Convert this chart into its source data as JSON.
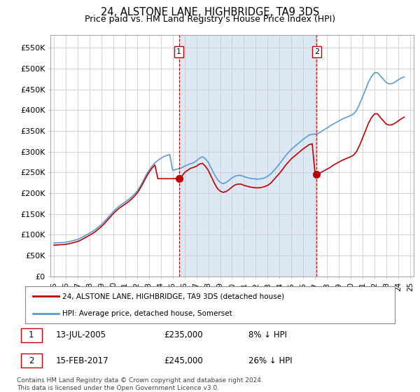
{
  "title": "24, ALSTONE LANE, HIGHBRIDGE, TA9 3DS",
  "subtitle": "Price paid vs. HM Land Registry's House Price Index (HPI)",
  "ylabel_ticks": [
    "£0",
    "£50K",
    "£100K",
    "£150K",
    "£200K",
    "£250K",
    "£300K",
    "£350K",
    "£400K",
    "£450K",
    "£500K",
    "£550K"
  ],
  "ytick_values": [
    0,
    50000,
    100000,
    150000,
    200000,
    250000,
    300000,
    350000,
    400000,
    450000,
    500000,
    550000
  ],
  "ylim": [
    0,
    580000
  ],
  "sale1_date": 2005.53,
  "sale1_price": 235000,
  "sale1_label": "1",
  "sale2_date": 2017.12,
  "sale2_price": 245000,
  "sale2_label": "2",
  "legend_line1": "24, ALSTONE LANE, HIGHBRIDGE, TA9 3DS (detached house)",
  "legend_line2": "HPI: Average price, detached house, Somerset",
  "note1_label": "1",
  "note1_date": "13-JUL-2005",
  "note1_price": "£235,000",
  "note1_hpi": "8% ↓ HPI",
  "note2_label": "2",
  "note2_date": "15-FEB-2017",
  "note2_price": "£245,000",
  "note2_hpi": "26% ↓ HPI",
  "footer": "Contains HM Land Registry data © Crown copyright and database right 2024.\nThis data is licensed under the Open Government Licence v3.0.",
  "hpi_color": "#5b9bd5",
  "hpi_fill_color": "#dce9f5",
  "sale_color": "#c00000",
  "vline_color": "#c00000",
  "background_color": "#ffffff",
  "grid_color": "#cccccc",
  "hpi_data_x": [
    1995.0,
    1995.25,
    1995.5,
    1995.75,
    1996.0,
    1996.25,
    1996.5,
    1996.75,
    1997.0,
    1997.25,
    1997.5,
    1997.75,
    1998.0,
    1998.25,
    1998.5,
    1998.75,
    1999.0,
    1999.25,
    1999.5,
    1999.75,
    2000.0,
    2000.25,
    2000.5,
    2000.75,
    2001.0,
    2001.25,
    2001.5,
    2001.75,
    2002.0,
    2002.25,
    2002.5,
    2002.75,
    2003.0,
    2003.25,
    2003.5,
    2003.75,
    2004.0,
    2004.25,
    2004.5,
    2004.75,
    2005.0,
    2005.25,
    2005.5,
    2005.75,
    2006.0,
    2006.25,
    2006.5,
    2006.75,
    2007.0,
    2007.25,
    2007.5,
    2007.75,
    2008.0,
    2008.25,
    2008.5,
    2008.75,
    2009.0,
    2009.25,
    2009.5,
    2009.75,
    2010.0,
    2010.25,
    2010.5,
    2010.75,
    2011.0,
    2011.25,
    2011.5,
    2011.75,
    2012.0,
    2012.25,
    2012.5,
    2012.75,
    2013.0,
    2013.25,
    2013.5,
    2013.75,
    2014.0,
    2014.25,
    2014.5,
    2014.75,
    2015.0,
    2015.25,
    2015.5,
    2015.75,
    2016.0,
    2016.25,
    2016.5,
    2016.75,
    2017.0,
    2017.25,
    2017.5,
    2017.75,
    2018.0,
    2018.25,
    2018.5,
    2018.75,
    2019.0,
    2019.25,
    2019.5,
    2019.75,
    2020.0,
    2020.25,
    2020.5,
    2020.75,
    2021.0,
    2021.25,
    2021.5,
    2021.75,
    2022.0,
    2022.25,
    2022.5,
    2022.75,
    2023.0,
    2023.25,
    2023.5,
    2023.75,
    2024.0,
    2024.25,
    2024.5
  ],
  "hpi_data_y": [
    80000,
    80500,
    81000,
    81500,
    82000,
    83500,
    85000,
    87000,
    89000,
    92000,
    96000,
    100000,
    104000,
    108000,
    113000,
    119000,
    125000,
    132000,
    140000,
    148000,
    156000,
    163000,
    169000,
    174000,
    179000,
    184000,
    190000,
    197000,
    205000,
    216000,
    229000,
    243000,
    255000,
    265000,
    273000,
    279000,
    284000,
    288000,
    291000,
    293000,
    255000,
    257000,
    259000,
    261000,
    265000,
    268000,
    271000,
    273000,
    278000,
    284000,
    288000,
    283000,
    274000,
    260000,
    246000,
    234000,
    226000,
    223000,
    226000,
    231000,
    237000,
    241000,
    243000,
    243000,
    240000,
    238000,
    236000,
    235000,
    234000,
    234000,
    235000,
    237000,
    241000,
    246000,
    254000,
    262000,
    271000,
    280000,
    290000,
    298000,
    306000,
    312000,
    318000,
    324000,
    330000,
    335000,
    340000,
    342000,
    342000,
    344000,
    348000,
    353000,
    357000,
    362000,
    366000,
    370000,
    374000,
    378000,
    381000,
    384000,
    387000,
    391000,
    400000,
    415000,
    432000,
    450000,
    468000,
    481000,
    490000,
    490000,
    482000,
    474000,
    466000,
    463000,
    464000,
    468000,
    473000,
    477000,
    480000
  ],
  "sale_data_x": [
    1995.0,
    1995.25,
    1995.5,
    1995.75,
    1996.0,
    1996.25,
    1996.5,
    1996.75,
    1997.0,
    1997.25,
    1997.5,
    1997.75,
    1998.0,
    1998.25,
    1998.5,
    1998.75,
    1999.0,
    1999.25,
    1999.5,
    1999.75,
    2000.0,
    2000.25,
    2000.5,
    2000.75,
    2001.0,
    2001.25,
    2001.5,
    2001.75,
    2002.0,
    2002.25,
    2002.5,
    2002.75,
    2003.0,
    2003.25,
    2003.5,
    2003.75,
    2004.0,
    2004.25,
    2004.5,
    2004.75,
    2005.0,
    2005.25,
    2005.5,
    2005.75,
    2006.0,
    2006.25,
    2006.5,
    2006.75,
    2007.0,
    2007.25,
    2007.5,
    2007.75,
    2008.0,
    2008.25,
    2008.5,
    2008.75,
    2009.0,
    2009.25,
    2009.5,
    2009.75,
    2010.0,
    2010.25,
    2010.5,
    2010.75,
    2011.0,
    2011.25,
    2011.5,
    2011.75,
    2012.0,
    2012.25,
    2012.5,
    2012.75,
    2013.0,
    2013.25,
    2013.5,
    2013.75,
    2014.0,
    2014.25,
    2014.5,
    2014.75,
    2015.0,
    2015.25,
    2015.5,
    2015.75,
    2016.0,
    2016.25,
    2016.5,
    2016.75,
    2017.0,
    2017.25,
    2017.5,
    2017.75,
    2018.0,
    2018.25,
    2018.5,
    2018.75,
    2019.0,
    2019.25,
    2019.5,
    2019.75,
    2020.0,
    2020.25,
    2020.5,
    2020.75,
    2021.0,
    2021.25,
    2021.5,
    2021.75,
    2022.0,
    2022.25,
    2022.5,
    2022.75,
    2023.0,
    2023.25,
    2023.5,
    2023.75,
    2024.0,
    2024.25,
    2024.5
  ],
  "sale_data_y": [
    75000,
    75500,
    76000,
    76500,
    77000,
    78500,
    80000,
    82000,
    84000,
    87000,
    91000,
    95000,
    99000,
    103000,
    108000,
    114000,
    120000,
    127000,
    135000,
    143000,
    151000,
    158000,
    164000,
    169000,
    174000,
    179000,
    185000,
    192000,
    200000,
    211000,
    224000,
    238000,
    250000,
    260000,
    268000,
    235000,
    235000,
    235000,
    235000,
    235000,
    235000,
    235000,
    235000,
    240000,
    250000,
    255000,
    260000,
    262000,
    265000,
    270000,
    272000,
    265000,
    255000,
    240000,
    225000,
    212000,
    205000,
    202000,
    204000,
    209000,
    215000,
    220000,
    222000,
    222000,
    219000,
    217000,
    215000,
    214000,
    213000,
    213000,
    214000,
    216000,
    219000,
    224000,
    232000,
    240000,
    248000,
    257000,
    267000,
    275000,
    283000,
    289000,
    295000,
    301000,
    307000,
    312000,
    317000,
    319000,
    245000,
    247000,
    250000,
    254000,
    258000,
    262000,
    267000,
    271000,
    275000,
    279000,
    282000,
    285000,
    288000,
    292000,
    301000,
    316000,
    333000,
    351000,
    369000,
    382000,
    391000,
    391000,
    382000,
    374000,
    366000,
    364000,
    365000,
    369000,
    374000,
    379000,
    383000
  ],
  "xtick_years": [
    1995,
    1996,
    1997,
    1998,
    1999,
    2000,
    2001,
    2002,
    2003,
    2004,
    2005,
    2006,
    2007,
    2008,
    2009,
    2010,
    2011,
    2012,
    2013,
    2014,
    2015,
    2016,
    2017,
    2018,
    2019,
    2020,
    2021,
    2022,
    2023,
    2024,
    2025
  ]
}
